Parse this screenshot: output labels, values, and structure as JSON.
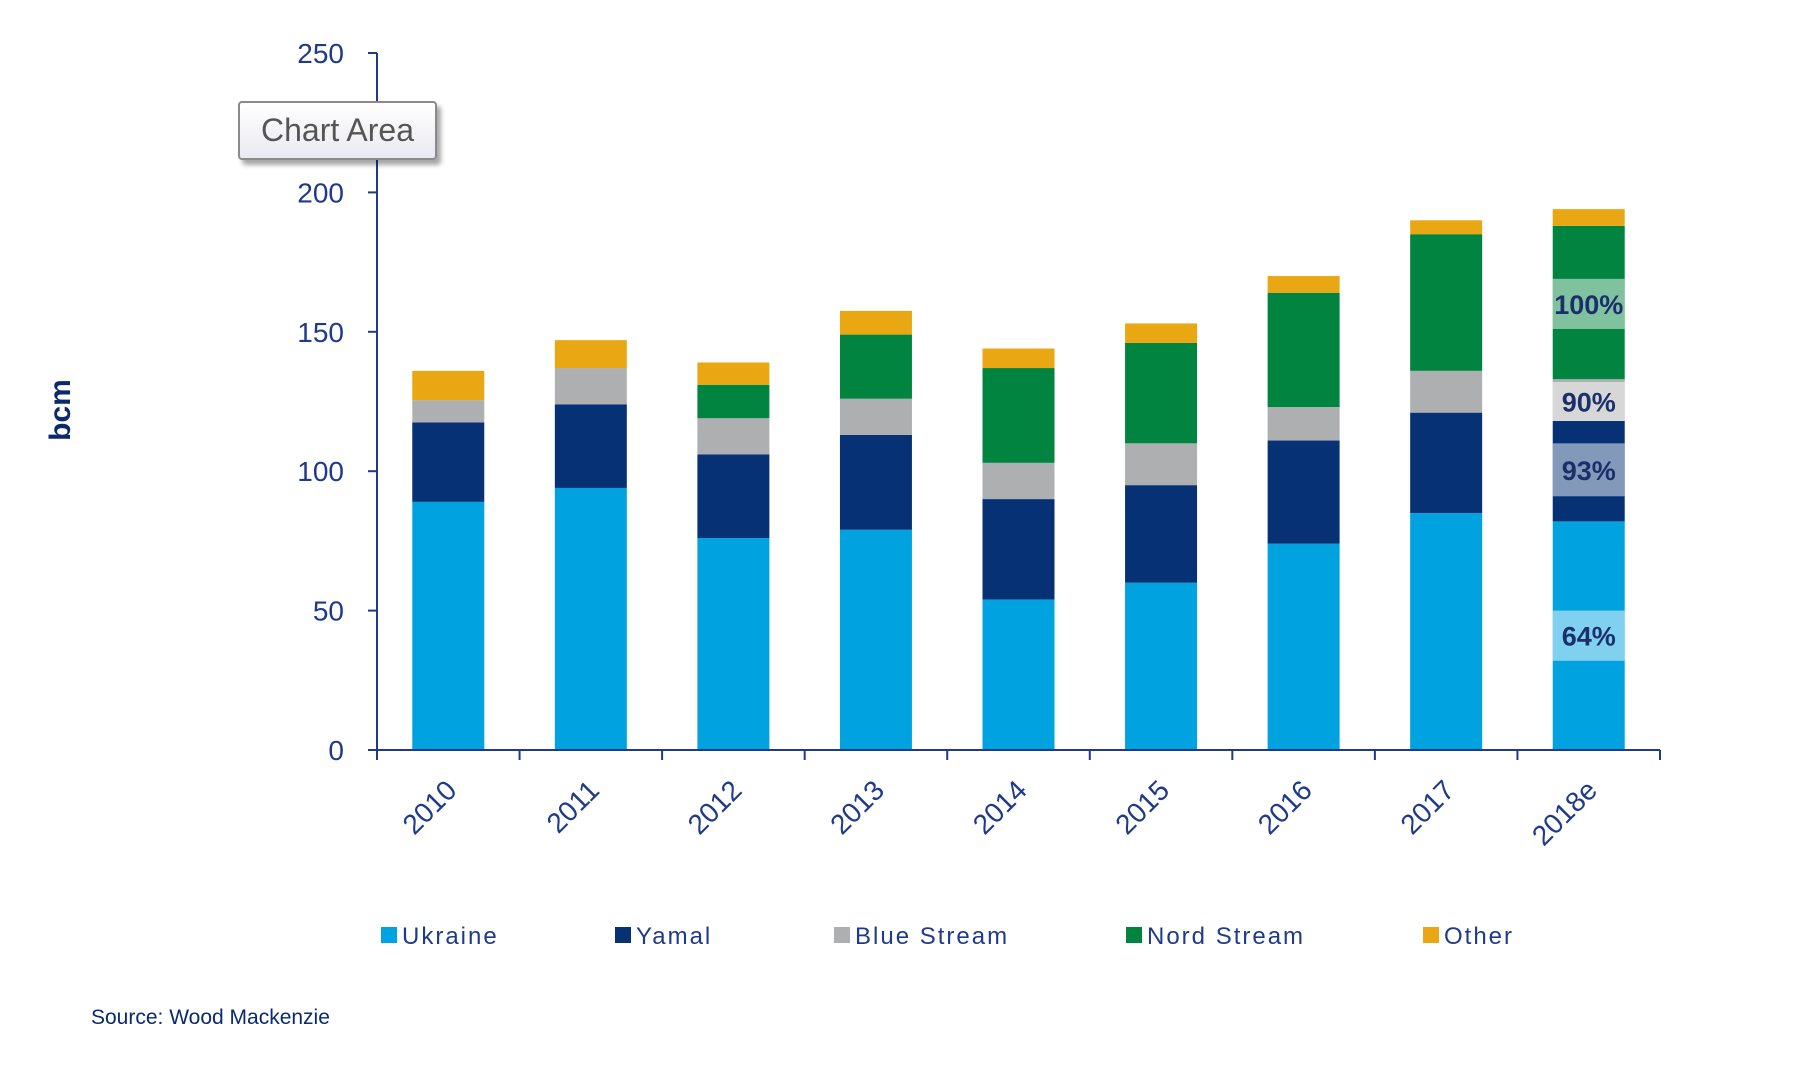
{
  "tooltip": {
    "text": "Chart Area"
  },
  "source": "Source: Wood Mackenzie",
  "chart_data": {
    "type": "bar",
    "stacked": true,
    "title": "",
    "xlabel": "",
    "ylabel": "bcm",
    "ylim": [
      0,
      250
    ],
    "yticks": [
      0,
      50,
      100,
      150,
      200,
      250
    ],
    "grid": false,
    "legend_position": "bottom",
    "categories": [
      "2010",
      "2011",
      "2012",
      "2013",
      "2014",
      "2015",
      "2016",
      "2017",
      "2018e"
    ],
    "series": [
      {
        "name": "Ukraine",
        "color": "#00a3e0",
        "values": [
          89,
          94,
          76,
          79,
          54,
          60,
          74,
          85,
          82
        ]
      },
      {
        "name": "Yamal",
        "color": "#063275",
        "values": [
          28.5,
          30,
          30,
          34,
          36,
          35,
          37,
          36,
          36
        ]
      },
      {
        "name": "Blue Stream",
        "color": "#aeafb1",
        "values": [
          8,
          13,
          13,
          13,
          13,
          15,
          12,
          15,
          15
        ]
      },
      {
        "name": "Nord Stream",
        "color": "#00843f",
        "values": [
          0,
          0,
          12,
          23,
          34,
          36,
          41,
          49,
          55
        ]
      },
      {
        "name": "Other",
        "color": "#e9a713",
        "values": [
          10.5,
          10,
          8,
          8.5,
          7,
          7,
          6,
          5,
          6
        ]
      }
    ],
    "annotations": [
      {
        "category": "2018e",
        "series": "Ukraine",
        "text": "64%",
        "band": [
          32,
          50
        ]
      },
      {
        "category": "2018e",
        "series": "Yamal",
        "text": "93%",
        "band": [
          91,
          110
        ]
      },
      {
        "category": "2018e",
        "series": "Blue Stream",
        "text": "90%",
        "band": [
          118,
          132
        ]
      },
      {
        "category": "2018e",
        "series": "Nord Stream",
        "text": "100%",
        "band": [
          151,
          169
        ]
      }
    ]
  }
}
